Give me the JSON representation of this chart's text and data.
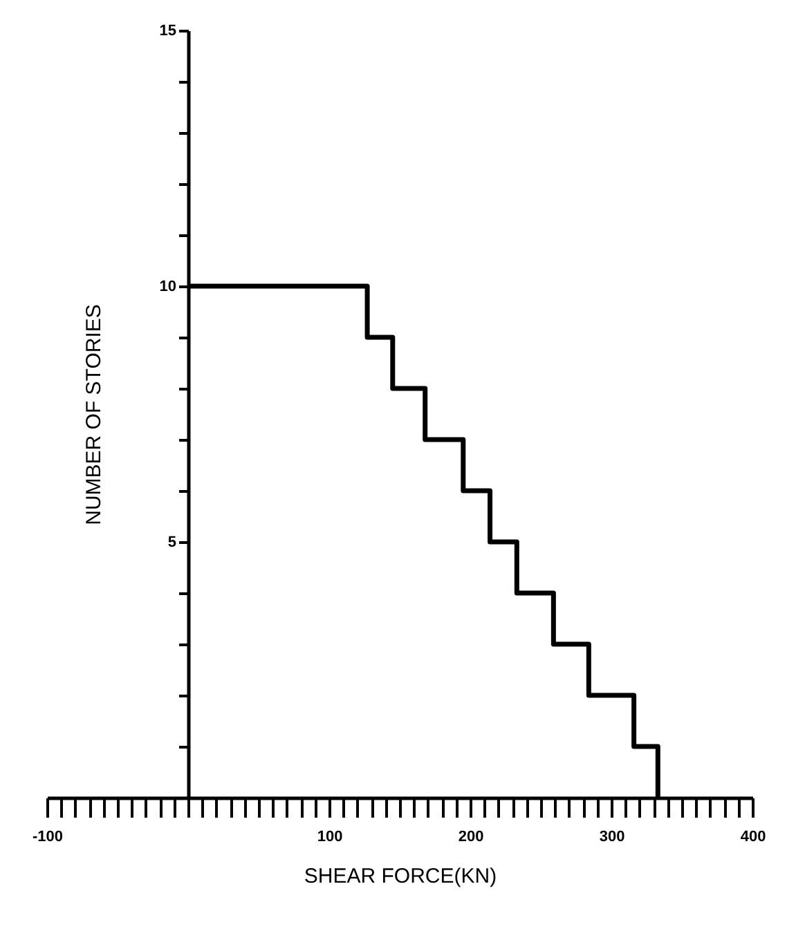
{
  "chart_data": {
    "type": "step",
    "xlabel": "SHEAR FORCE(KN)",
    "ylabel": "NUMBER OF STORIES",
    "x": [
      0,
      127,
      145,
      168,
      195,
      214,
      233,
      259,
      284,
      316,
      333
    ],
    "series": [
      {
        "color": "#000000",
        "values": [
          10,
          9,
          8,
          7,
          6,
          5,
          4,
          3,
          2,
          1,
          0
        ]
      }
    ],
    "xlim": [
      -100,
      400
    ],
    "xticks": [
      -100,
      {
        "value": -90,
        "label": null
      },
      {
        "value": -80,
        "label": null
      },
      {
        "value": -70,
        "label": null
      },
      {
        "value": -60,
        "label": null
      },
      {
        "value": -50,
        "label": null
      },
      {
        "value": -40,
        "label": null
      },
      {
        "value": -30,
        "label": null
      },
      {
        "value": -20,
        "label": null
      },
      {
        "value": -10,
        "label": null
      },
      {
        "value": 0,
        "label": null
      },
      {
        "value": 10,
        "label": null
      },
      {
        "value": 20,
        "label": null
      },
      {
        "value": 30,
        "label": null
      },
      {
        "value": 40,
        "label": null
      },
      {
        "value": 50,
        "label": null
      },
      {
        "value": 60,
        "label": null
      },
      {
        "value": 70,
        "label": null
      },
      {
        "value": 80,
        "label": null
      },
      {
        "value": 90,
        "label": null
      },
      100,
      {
        "value": 110,
        "label": null
      },
      {
        "value": 120,
        "label": null
      },
      {
        "value": 130,
        "label": null
      },
      {
        "value": 140,
        "label": null
      },
      {
        "value": 150,
        "label": null
      },
      {
        "value": 160,
        "label": null
      },
      {
        "value": 170,
        "label": null
      },
      {
        "value": 180,
        "label": null
      },
      {
        "value": 190,
        "label": null
      },
      200,
      {
        "value": 210,
        "label": null
      },
      {
        "value": 220,
        "label": null
      },
      {
        "value": 230,
        "label": null
      },
      {
        "value": 240,
        "label": null
      },
      {
        "value": 250,
        "label": null
      },
      {
        "value": 260,
        "label": null
      },
      {
        "value": 270,
        "label": null
      },
      {
        "value": 280,
        "label": null
      },
      {
        "value": 290,
        "label": null
      },
      300,
      {
        "value": 310,
        "label": null
      },
      {
        "value": 320,
        "label": null
      },
      {
        "value": 330,
        "label": null
      },
      {
        "value": 340,
        "label": null
      },
      {
        "value": 350,
        "label": null
      },
      {
        "value": 360,
        "label": null
      },
      {
        "value": 370,
        "label": null
      },
      {
        "value": 380,
        "label": null
      },
      {
        "value": 390,
        "label": null
      },
      400
    ],
    "ylim": [
      0,
      15
    ],
    "yticks": [
      {
        "value": 0,
        "label": null
      },
      {
        "value": 1,
        "label": null
      },
      {
        "value": 2,
        "label": null
      },
      {
        "value": 3,
        "label": null
      },
      {
        "value": 4,
        "label": null
      },
      5,
      {
        "value": 6,
        "label": null
      },
      {
        "value": 7,
        "label": null
      },
      {
        "value": 8,
        "label": null
      },
      {
        "value": 9,
        "label": null
      },
      10,
      {
        "value": 11,
        "label": null
      },
      {
        "value": 12,
        "label": null
      },
      {
        "value": 13,
        "label": null
      },
      {
        "value": 14,
        "label": null
      },
      15
    ],
    "grid": false,
    "marker": "none",
    "line_style": "solid"
  }
}
